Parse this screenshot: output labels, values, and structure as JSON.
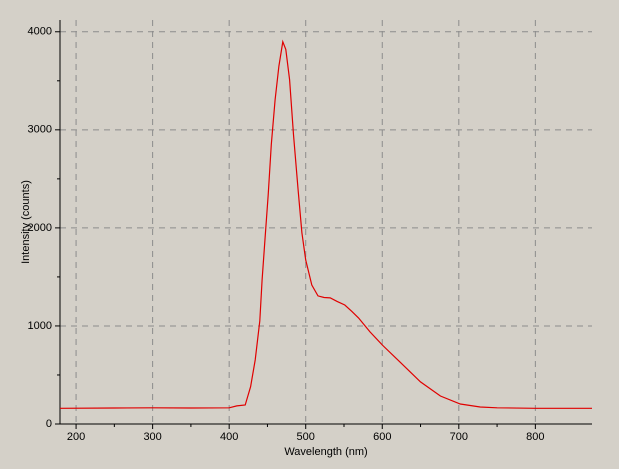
{
  "chart_data": {
    "type": "line",
    "xlabel": "Wavelength (nm)",
    "ylabel": "Intensity (counts)",
    "xlim": [
      179,
      874
    ],
    "ylim": [
      0,
      4120
    ],
    "xticks": [
      200,
      300,
      400,
      500,
      600,
      700,
      800
    ],
    "yticks": [
      0,
      1000,
      2000,
      3000,
      4000
    ],
    "grid": true,
    "series": [
      {
        "color": "#e00000",
        "x": [
          179,
          250,
          300,
          350,
          400,
          410,
          421,
          428,
          434,
          440,
          443,
          447,
          451,
          455,
          460,
          465,
          470,
          474,
          479,
          484,
          490,
          495,
          500,
          508,
          516,
          524,
          532,
          541,
          551,
          560,
          569,
          584,
          600,
          623,
          650,
          676,
          702,
          728,
          750,
          800,
          874
        ],
        "values": [
          160,
          163,
          165,
          163,
          165,
          185,
          194,
          380,
          653,
          1050,
          1470,
          1900,
          2337,
          2850,
          3306,
          3650,
          3898,
          3820,
          3510,
          2950,
          2388,
          1950,
          1673,
          1418,
          1306,
          1290,
          1286,
          1250,
          1214,
          1150,
          1082,
          939,
          806,
          633,
          429,
          286,
          204,
          173,
          165,
          160,
          160
        ]
      }
    ]
  }
}
